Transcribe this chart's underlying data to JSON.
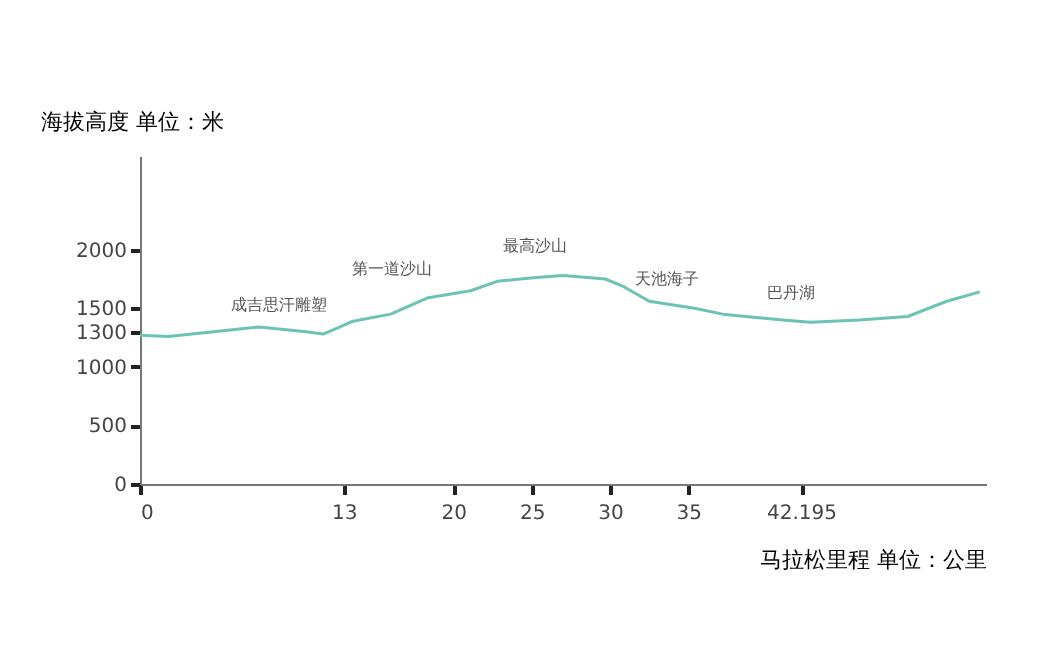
{
  "chart_data": {
    "type": "line",
    "ylabel": "海拔高度  单位：米",
    "xlabel": "马拉松里程  单位：公里",
    "x": [
      0,
      1.8,
      4.7,
      7.6,
      10.6,
      11.7,
      13.6,
      16,
      18.4,
      21.1,
      22.8,
      25.1,
      27,
      29.7,
      30.8,
      32.5,
      35.4,
      37.2,
      41,
      42.8,
      45.9,
      49,
      51.5,
      53.6
    ],
    "series": [
      {
        "color": "#6cc3b5",
        "values": [
          1270,
          1260,
          1300,
          1340,
          1300,
          1280,
          1390,
          1450,
          1590,
          1650,
          1730,
          1760,
          1780,
          1750,
          1690,
          1560,
          1500,
          1450,
          1400,
          1380,
          1400,
          1430,
          1560,
          1640
        ]
      }
    ],
    "xlim": [
      0,
      54
    ],
    "xticks": [
      0,
      13,
      20,
      25,
      30,
      35,
      42.195
    ],
    "ylim": [
      0,
      2800
    ],
    "yticks": [
      0,
      500,
      1000,
      1300,
      1500,
      2000
    ],
    "grid": false,
    "marker": "none",
    "line_style": "solid",
    "annotations": [
      {
        "text": "成吉思汗雕塑",
        "x": 11.7,
        "y": 1280
      },
      {
        "text": "第一道沙山",
        "x": 18.4,
        "y": 1590
      },
      {
        "text": "最高沙山",
        "x": 27,
        "y": 1780
      },
      {
        "text": "天池海子",
        "x": 35.4,
        "y": 1500
      },
      {
        "text": "巴丹湖",
        "x": 42.8,
        "y": 1380
      }
    ]
  }
}
